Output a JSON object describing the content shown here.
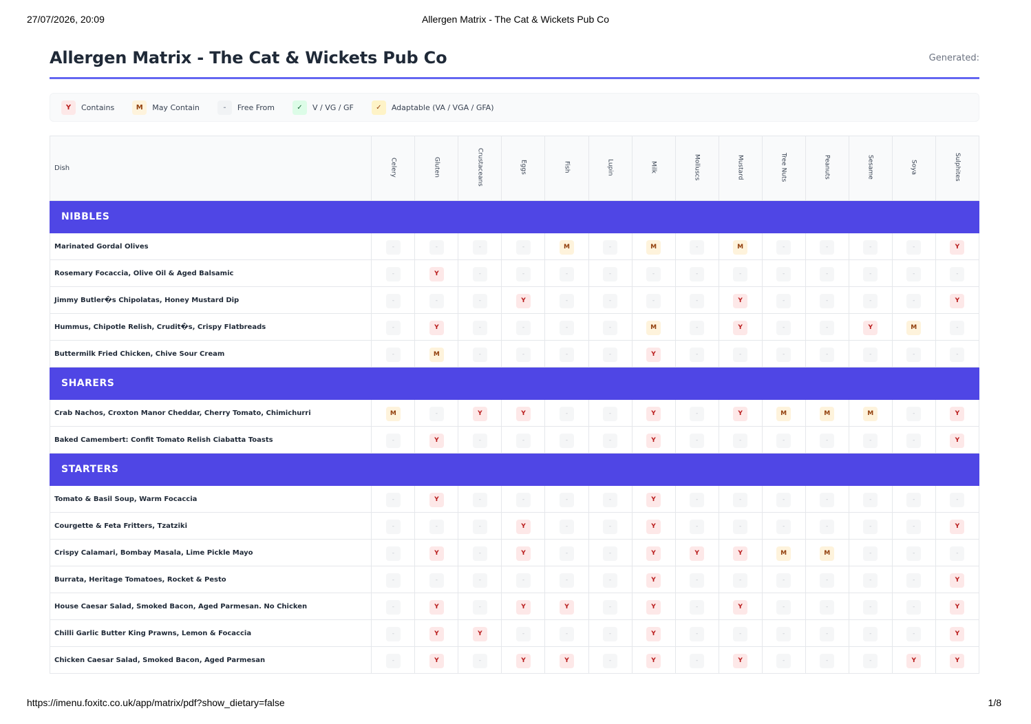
{
  "print_header": {
    "datetime": "27/07/2026, 20:09",
    "title": "Allergen Matrix - The Cat & Wickets Pub Co"
  },
  "print_footer": {
    "url": "https://imenu.foxitc.co.uk/app/matrix/pdf?show_dietary=false",
    "page": "1/8"
  },
  "document": {
    "title": "Allergen Matrix - The Cat & Wickets Pub Co",
    "generated_label": "Generated:"
  },
  "colors": {
    "accent": "#4f46e5",
    "rule": "#6366f1",
    "contains": "#b91c1c",
    "may_contain": "#92400e"
  },
  "legend": [
    {
      "symbol": "Y",
      "label": "Contains",
      "kind": "y"
    },
    {
      "symbol": "M",
      "label": "May Contain",
      "kind": "m"
    },
    {
      "symbol": "-",
      "label": "Free From",
      "kind": "f"
    },
    {
      "symbol": "✓",
      "label": "V / VG / GF",
      "kind": "v"
    },
    {
      "symbol": "✓",
      "label": "Adaptable (VA / VGA / GFA)",
      "kind": "a"
    }
  ],
  "table": {
    "dish_header": "Dish",
    "allergens": [
      "Celery",
      "Gluten",
      "Crustaceans",
      "Eggs",
      "Fish",
      "Lupin",
      "Milk",
      "Molluscs",
      "Mustard",
      "Tree Nuts",
      "Peanuts",
      "Sesame",
      "Soya",
      "Sulphites"
    ],
    "categories": [
      {
        "name": "NIBBLES",
        "dishes": [
          {
            "name": "Marinated Gordal Olives",
            "cells": [
              "-",
              "-",
              "-",
              "-",
              "M",
              "-",
              "M",
              "-",
              "M",
              "-",
              "-",
              "-",
              "-",
              "Y"
            ]
          },
          {
            "name": "Rosemary Focaccia, Olive Oil & Aged Balsamic",
            "cells": [
              "-",
              "Y",
              "-",
              "-",
              "-",
              "-",
              "-",
              "-",
              "-",
              "-",
              "-",
              "-",
              "-",
              "-"
            ]
          },
          {
            "name": "Jimmy Butler�s Chipolatas, Honey Mustard Dip",
            "cells": [
              "-",
              "-",
              "-",
              "Y",
              "-",
              "-",
              "-",
              "-",
              "Y",
              "-",
              "-",
              "-",
              "-",
              "Y"
            ]
          },
          {
            "name": "Hummus, Chipotle Relish, Crudit�s, Crispy Flatbreads",
            "cells": [
              "-",
              "Y",
              "-",
              "-",
              "-",
              "-",
              "M",
              "-",
              "Y",
              "-",
              "-",
              "Y",
              "M",
              "-"
            ]
          },
          {
            "name": "Buttermilk Fried Chicken, Chive Sour Cream",
            "cells": [
              "-",
              "M",
              "-",
              "-",
              "-",
              "-",
              "Y",
              "-",
              "-",
              "-",
              "-",
              "-",
              "-",
              "-"
            ]
          }
        ]
      },
      {
        "name": "SHARERS",
        "dishes": [
          {
            "name": "Crab Nachos, Croxton Manor Cheddar, Cherry Tomato, Chimichurri",
            "cells": [
              "M",
              "-",
              "Y",
              "Y",
              "-",
              "-",
              "Y",
              "-",
              "Y",
              "M",
              "M",
              "M",
              "-",
              "Y"
            ]
          },
          {
            "name": "Baked Camembert: Confit Tomato Relish Ciabatta Toasts",
            "cells": [
              "-",
              "Y",
              "-",
              "-",
              "-",
              "-",
              "Y",
              "-",
              "-",
              "-",
              "-",
              "-",
              "-",
              "Y"
            ]
          }
        ]
      },
      {
        "name": "STARTERS",
        "dishes": [
          {
            "name": "Tomato & Basil Soup, Warm Focaccia",
            "cells": [
              "-",
              "Y",
              "-",
              "-",
              "-",
              "-",
              "Y",
              "-",
              "-",
              "-",
              "-",
              "-",
              "-",
              "-"
            ]
          },
          {
            "name": "Courgette & Feta Fritters, Tzatziki",
            "cells": [
              "-",
              "-",
              "-",
              "Y",
              "-",
              "-",
              "Y",
              "-",
              "-",
              "-",
              "-",
              "-",
              "-",
              "Y"
            ]
          },
          {
            "name": "Crispy Calamari, Bombay Masala, Lime Pickle Mayo",
            "cells": [
              "-",
              "Y",
              "-",
              "Y",
              "-",
              "-",
              "Y",
              "Y",
              "Y",
              "M",
              "M",
              "-",
              "-",
              "-"
            ]
          },
          {
            "name": "Burrata, Heritage Tomatoes, Rocket & Pesto",
            "cells": [
              "-",
              "-",
              "-",
              "-",
              "-",
              "-",
              "Y",
              "-",
              "-",
              "-",
              "-",
              "-",
              "-",
              "Y"
            ]
          },
          {
            "name": "House Caesar Salad, Smoked Bacon, Aged Parmesan. No Chicken",
            "cells": [
              "-",
              "Y",
              "-",
              "Y",
              "Y",
              "-",
              "Y",
              "-",
              "Y",
              "-",
              "-",
              "-",
              "-",
              "Y"
            ]
          },
          {
            "name": "Chilli Garlic Butter King Prawns, Lemon & Focaccia",
            "cells": [
              "-",
              "Y",
              "Y",
              "-",
              "-",
              "-",
              "Y",
              "-",
              "-",
              "-",
              "-",
              "-",
              "-",
              "Y"
            ]
          },
          {
            "name": "Chicken Caesar Salad, Smoked Bacon, Aged Parmesan",
            "cells": [
              "-",
              "Y",
              "-",
              "Y",
              "Y",
              "-",
              "Y",
              "-",
              "Y",
              "-",
              "-",
              "-",
              "Y",
              "Y"
            ]
          }
        ]
      }
    ]
  }
}
